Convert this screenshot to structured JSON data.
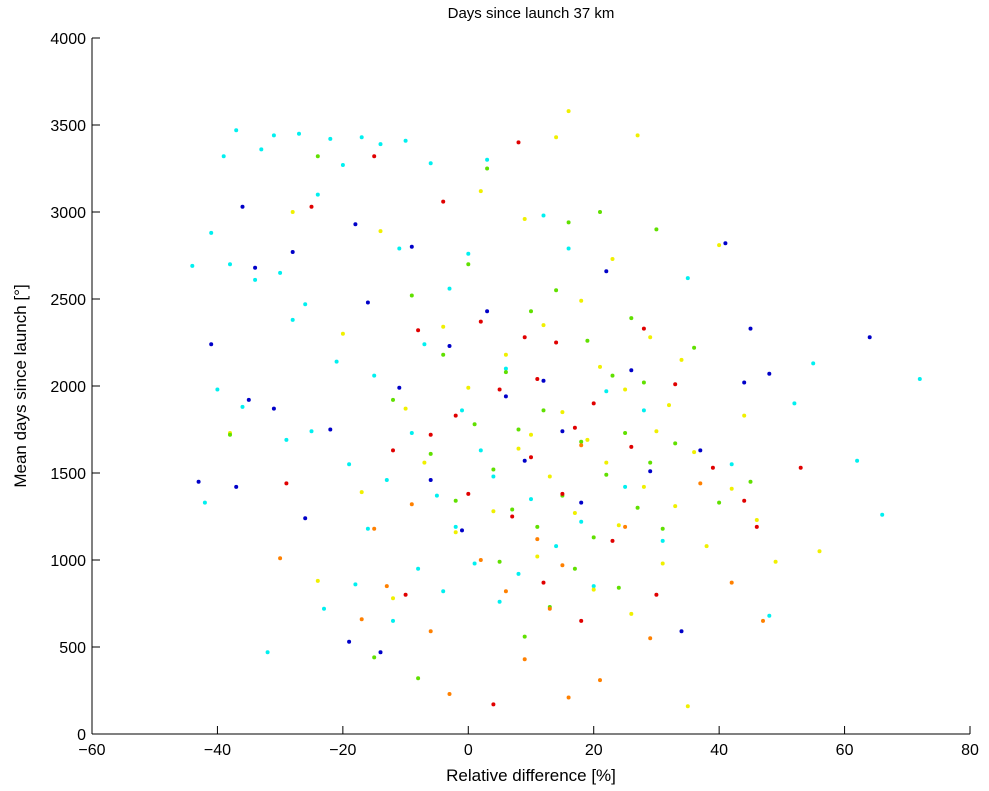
{
  "chart_data": {
    "type": "scatter",
    "title": "Days since launch 37 km",
    "xlabel": "Relative difference [%]",
    "ylabel": "Mean days since launch [°]",
    "xlim": [
      -60,
      80
    ],
    "ylim": [
      0,
      4000
    ],
    "xticks": [
      -60,
      -40,
      -20,
      0,
      20,
      40,
      60,
      80
    ],
    "yticks": [
      0,
      500,
      1000,
      1500,
      2000,
      2500,
      3000,
      3500,
      4000
    ],
    "xtick_labels": [
      "−60",
      "−40",
      "−20",
      "0",
      "20",
      "40",
      "60",
      "80"
    ],
    "ytick_labels": [
      "0",
      "500",
      "1000",
      "1500",
      "2000",
      "2500",
      "3000",
      "3500",
      "4000"
    ],
    "grid": false,
    "legend": "none",
    "colors": [
      "#00f0f0",
      "#f0f000",
      "#60e000",
      "#ff8000",
      "#e00000",
      "#0000c8"
    ],
    "points": [
      [
        -44,
        2690,
        0
      ],
      [
        -42,
        1330,
        0
      ],
      [
        -41,
        2880,
        0
      ],
      [
        -40,
        1980,
        0
      ],
      [
        -39,
        3320,
        0
      ],
      [
        -38,
        2700,
        0
      ],
      [
        -37,
        3470,
        0
      ],
      [
        -36,
        1880,
        0
      ],
      [
        -34,
        2610,
        0
      ],
      [
        -33,
        3360,
        0
      ],
      [
        -32,
        470,
        0
      ],
      [
        -31,
        3440,
        0
      ],
      [
        -30,
        2650,
        0
      ],
      [
        -29,
        1690,
        0
      ],
      [
        -28,
        2380,
        0
      ],
      [
        -27,
        3450,
        0
      ],
      [
        -26,
        2470,
        0
      ],
      [
        -25,
        1740,
        0
      ],
      [
        -24,
        3100,
        0
      ],
      [
        -23,
        720,
        0
      ],
      [
        -22,
        3420,
        0
      ],
      [
        -21,
        2140,
        0
      ],
      [
        -20,
        3270,
        0
      ],
      [
        -19,
        1550,
        0
      ],
      [
        -18,
        860,
        0
      ],
      [
        -17,
        3430,
        0
      ],
      [
        -16,
        1180,
        0
      ],
      [
        -15,
        2060,
        0
      ],
      [
        -14,
        3390,
        0
      ],
      [
        -13,
        1460,
        0
      ],
      [
        -12,
        650,
        0
      ],
      [
        -11,
        2790,
        0
      ],
      [
        -10,
        3410,
        0
      ],
      [
        -9,
        1730,
        0
      ],
      [
        -8,
        950,
        0
      ],
      [
        -7,
        2240,
        0
      ],
      [
        -6,
        3280,
        0
      ],
      [
        -5,
        1370,
        0
      ],
      [
        -4,
        820,
        0
      ],
      [
        -3,
        2560,
        0
      ],
      [
        -2,
        1190,
        0
      ],
      [
        -1,
        1860,
        0
      ],
      [
        0,
        2760,
        0
      ],
      [
        1,
        980,
        0
      ],
      [
        2,
        1630,
        0
      ],
      [
        3,
        3300,
        0
      ],
      [
        4,
        1480,
        0
      ],
      [
        5,
        760,
        0
      ],
      [
        6,
        2100,
        0
      ],
      [
        8,
        920,
        0
      ],
      [
        10,
        1350,
        0
      ],
      [
        12,
        2980,
        0
      ],
      [
        14,
        1080,
        0
      ],
      [
        16,
        2790,
        0
      ],
      [
        18,
        1220,
        0
      ],
      [
        20,
        850,
        0
      ],
      [
        22,
        1970,
        0
      ],
      [
        25,
        1420,
        0
      ],
      [
        28,
        1860,
        0
      ],
      [
        31,
        1110,
        0
      ],
      [
        35,
        2620,
        0
      ],
      [
        42,
        1550,
        0
      ],
      [
        48,
        680,
        0
      ],
      [
        52,
        1900,
        0
      ],
      [
        55,
        2130,
        0
      ],
      [
        62,
        1570,
        0
      ],
      [
        66,
        1260,
        0
      ],
      [
        72,
        2040,
        0
      ],
      [
        -38,
        1730,
        1
      ],
      [
        -28,
        3000,
        1
      ],
      [
        -24,
        880,
        1
      ],
      [
        -20,
        2300,
        1
      ],
      [
        -17,
        1390,
        1
      ],
      [
        -14,
        2890,
        1
      ],
      [
        -12,
        780,
        1
      ],
      [
        -10,
        1870,
        1
      ],
      [
        -7,
        1560,
        1
      ],
      [
        -4,
        2340,
        1
      ],
      [
        -2,
        1160,
        1
      ],
      [
        0,
        1990,
        1
      ],
      [
        2,
        3120,
        1
      ],
      [
        4,
        1280,
        1
      ],
      [
        6,
        2180,
        1
      ],
      [
        8,
        1640,
        1
      ],
      [
        9,
        2960,
        1
      ],
      [
        10,
        1720,
        1
      ],
      [
        11,
        1020,
        1
      ],
      [
        12,
        2350,
        1
      ],
      [
        13,
        1480,
        1
      ],
      [
        14,
        3430,
        1
      ],
      [
        15,
        1850,
        1
      ],
      [
        16,
        3580,
        1
      ],
      [
        17,
        1270,
        1
      ],
      [
        18,
        2490,
        1
      ],
      [
        19,
        1690,
        1
      ],
      [
        20,
        830,
        1
      ],
      [
        21,
        2110,
        1
      ],
      [
        22,
        1560,
        1
      ],
      [
        23,
        2730,
        1
      ],
      [
        24,
        1200,
        1
      ],
      [
        25,
        1980,
        1
      ],
      [
        26,
        690,
        1
      ],
      [
        27,
        3440,
        1
      ],
      [
        28,
        1420,
        1
      ],
      [
        29,
        2280,
        1
      ],
      [
        30,
        1740,
        1
      ],
      [
        31,
        980,
        1
      ],
      [
        32,
        1890,
        1
      ],
      [
        33,
        1310,
        1
      ],
      [
        34,
        2150,
        1
      ],
      [
        35,
        160,
        1
      ],
      [
        36,
        1620,
        1
      ],
      [
        38,
        1080,
        1
      ],
      [
        40,
        2810,
        1
      ],
      [
        42,
        1410,
        1
      ],
      [
        44,
        1830,
        1
      ],
      [
        46,
        1230,
        1
      ],
      [
        49,
        990,
        1
      ],
      [
        56,
        1050,
        1
      ],
      [
        -38,
        1720,
        2
      ],
      [
        -24,
        3320,
        2
      ],
      [
        -15,
        440,
        2
      ],
      [
        -12,
        1920,
        2
      ],
      [
        -9,
        2520,
        2
      ],
      [
        -8,
        320,
        2
      ],
      [
        -6,
        1610,
        2
      ],
      [
        -4,
        2180,
        2
      ],
      [
        -2,
        1340,
        2
      ],
      [
        0,
        2700,
        2
      ],
      [
        1,
        1780,
        2
      ],
      [
        3,
        3250,
        2
      ],
      [
        4,
        1520,
        2
      ],
      [
        5,
        990,
        2
      ],
      [
        6,
        2080,
        2
      ],
      [
        7,
        1290,
        2
      ],
      [
        8,
        1750,
        2
      ],
      [
        9,
        560,
        2
      ],
      [
        10,
        2430,
        2
      ],
      [
        11,
        1190,
        2
      ],
      [
        12,
        1860,
        2
      ],
      [
        13,
        730,
        2
      ],
      [
        14,
        2550,
        2
      ],
      [
        15,
        1370,
        2
      ],
      [
        16,
        2940,
        2
      ],
      [
        17,
        950,
        2
      ],
      [
        18,
        1680,
        2
      ],
      [
        19,
        2260,
        2
      ],
      [
        20,
        1130,
        2
      ],
      [
        21,
        3000,
        2
      ],
      [
        22,
        1490,
        2
      ],
      [
        23,
        2060,
        2
      ],
      [
        24,
        840,
        2
      ],
      [
        25,
        1730,
        2
      ],
      [
        26,
        2390,
        2
      ],
      [
        27,
        1300,
        2
      ],
      [
        28,
        2020,
        2
      ],
      [
        29,
        1560,
        2
      ],
      [
        30,
        2900,
        2
      ],
      [
        31,
        1180,
        2
      ],
      [
        33,
        1670,
        2
      ],
      [
        36,
        2220,
        2
      ],
      [
        40,
        1330,
        2
      ],
      [
        45,
        1450,
        2
      ],
      [
        -30,
        1010,
        3
      ],
      [
        -17,
        660,
        3
      ],
      [
        -15,
        1180,
        3
      ],
      [
        -13,
        850,
        3
      ],
      [
        -9,
        1320,
        3
      ],
      [
        -6,
        590,
        3
      ],
      [
        -3,
        230,
        3
      ],
      [
        2,
        1000,
        3
      ],
      [
        6,
        820,
        3
      ],
      [
        9,
        430,
        3
      ],
      [
        11,
        1120,
        3
      ],
      [
        13,
        720,
        3
      ],
      [
        15,
        970,
        3
      ],
      [
        16,
        210,
        3
      ],
      [
        18,
        1660,
        3
      ],
      [
        21,
        310,
        3
      ],
      [
        25,
        1190,
        3
      ],
      [
        29,
        550,
        3
      ],
      [
        37,
        1440,
        3
      ],
      [
        42,
        870,
        3
      ],
      [
        47,
        650,
        3
      ],
      [
        -29,
        1440,
        4
      ],
      [
        -25,
        3030,
        4
      ],
      [
        -15,
        3320,
        4
      ],
      [
        -12,
        1630,
        4
      ],
      [
        -10,
        800,
        4
      ],
      [
        -8,
        2320,
        4
      ],
      [
        -6,
        1720,
        4
      ],
      [
        -4,
        3060,
        4
      ],
      [
        -2,
        1830,
        4
      ],
      [
        0,
        1380,
        4
      ],
      [
        2,
        2370,
        4
      ],
      [
        4,
        170,
        4
      ],
      [
        5,
        1980,
        4
      ],
      [
        7,
        1250,
        4
      ],
      [
        8,
        3400,
        4
      ],
      [
        9,
        2280,
        4
      ],
      [
        10,
        1590,
        4
      ],
      [
        11,
        2040,
        4
      ],
      [
        12,
        870,
        4
      ],
      [
        14,
        2250,
        4
      ],
      [
        15,
        1380,
        4
      ],
      [
        17,
        1760,
        4
      ],
      [
        18,
        650,
        4
      ],
      [
        20,
        1900,
        4
      ],
      [
        23,
        1110,
        4
      ],
      [
        26,
        1650,
        4
      ],
      [
        28,
        2330,
        4
      ],
      [
        30,
        800,
        4
      ],
      [
        33,
        2010,
        4
      ],
      [
        39,
        1530,
        4
      ],
      [
        44,
        1340,
        4
      ],
      [
        46,
        1190,
        4
      ],
      [
        53,
        1530,
        4
      ],
      [
        -43,
        1450,
        5
      ],
      [
        -41,
        2240,
        5
      ],
      [
        -37,
        1420,
        5
      ],
      [
        -36,
        3030,
        5
      ],
      [
        -35,
        1920,
        5
      ],
      [
        -34,
        2680,
        5
      ],
      [
        -31,
        1870,
        5
      ],
      [
        -28,
        2770,
        5
      ],
      [
        -26,
        1240,
        5
      ],
      [
        -22,
        1750,
        5
      ],
      [
        -19,
        530,
        5
      ],
      [
        -18,
        2930,
        5
      ],
      [
        -16,
        2480,
        5
      ],
      [
        -14,
        470,
        5
      ],
      [
        -11,
        1990,
        5
      ],
      [
        -9,
        2800,
        5
      ],
      [
        -6,
        1460,
        5
      ],
      [
        -3,
        2230,
        5
      ],
      [
        -1,
        1170,
        5
      ],
      [
        3,
        2430,
        5
      ],
      [
        6,
        1940,
        5
      ],
      [
        9,
        1570,
        5
      ],
      [
        12,
        2030,
        5
      ],
      [
        15,
        1740,
        5
      ],
      [
        18,
        1330,
        5
      ],
      [
        22,
        2660,
        5
      ],
      [
        26,
        2090,
        5
      ],
      [
        29,
        1510,
        5
      ],
      [
        34,
        590,
        5
      ],
      [
        37,
        1630,
        5
      ],
      [
        41,
        2820,
        5
      ],
      [
        44,
        2020,
        5
      ],
      [
        45,
        2330,
        5
      ],
      [
        48,
        2070,
        5
      ],
      [
        64,
        2280,
        5
      ]
    ]
  }
}
